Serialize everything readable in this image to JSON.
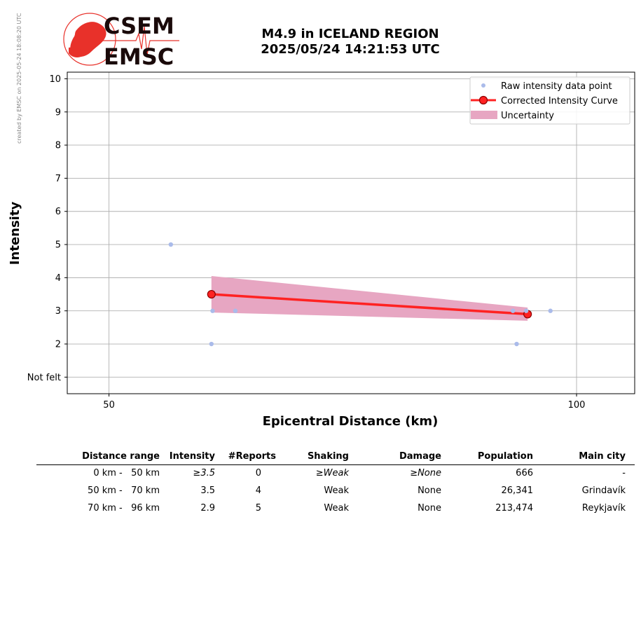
{
  "header": {
    "credit": "created by EMSC on 2025-05-24 18:08:20 UTC",
    "logo_top": "CSEM",
    "logo_bottom": "EMSC",
    "title_line1": "M4.9 in ICELAND REGION",
    "title_line2": "2025/05/24 14:21:53 UTC"
  },
  "colors": {
    "raw_points": "#aabbea",
    "curve": "#ff2222",
    "marker_edge": "#8b0000",
    "uncertainty": "#e7a6c2",
    "logo_red": "#e8312a",
    "logo_text": "#1a0a0a"
  },
  "chart_data": {
    "type": "scatter",
    "xlabel": "Epicentral Distance (km)",
    "ylabel": "Intensity",
    "x_scale": "log",
    "xlim": [
      47,
      109
    ],
    "ylim": [
      0.5,
      10.2
    ],
    "x_ticks": [
      50,
      100
    ],
    "x_tick_labels": [
      "50",
      "100"
    ],
    "y_ticks": [
      1,
      2,
      3,
      4,
      5,
      6,
      7,
      8,
      9,
      10
    ],
    "y_tick_labels": [
      "Not felt",
      "2",
      "3",
      "4",
      "5",
      "6",
      "7",
      "8",
      "9",
      "10"
    ],
    "grid": true,
    "legend_position": "top-right",
    "legend": [
      "Raw intensity data point",
      "Corrected Intensity Curve",
      "Uncertainty"
    ],
    "raw_points": [
      {
        "x": 54.8,
        "y": 5
      },
      {
        "x": 58.3,
        "y": 3
      },
      {
        "x": 58.2,
        "y": 2
      },
      {
        "x": 60.3,
        "y": 3
      },
      {
        "x": 91.0,
        "y": 3
      },
      {
        "x": 92.8,
        "y": 3
      },
      {
        "x": 91.5,
        "y": 2
      },
      {
        "x": 96.2,
        "y": 3
      }
    ],
    "curve": [
      {
        "x": 58.2,
        "y": 3.5
      },
      {
        "x": 93.0,
        "y": 2.9
      }
    ],
    "uncertainty": {
      "x": [
        58.2,
        93.0
      ],
      "upper": [
        4.05,
        3.1
      ],
      "lower": [
        2.95,
        2.7
      ]
    }
  },
  "table": {
    "headers": [
      "Distance range",
      "Intensity",
      "#Reports",
      "Shaking",
      "Damage",
      "Population",
      "Main city"
    ],
    "rows": [
      {
        "range": "0 km -   50 km",
        "intensity": "≥3.5",
        "reports": "0",
        "shaking": "≥Weak",
        "damage": "≥None",
        "population": "666",
        "city": "-"
      },
      {
        "range": "50 km -   70 km",
        "intensity": "3.5",
        "reports": "4",
        "shaking": "Weak",
        "damage": "None",
        "population": "26,341",
        "city": "Grindavík"
      },
      {
        "range": "70 km -   96 km",
        "intensity": "2.9",
        "reports": "5",
        "shaking": "Weak",
        "damage": "None",
        "population": "213,474",
        "city": "Reykjavík"
      }
    ]
  }
}
